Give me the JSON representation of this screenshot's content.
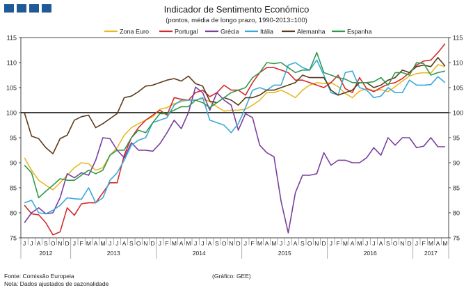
{
  "header": {
    "title": "Indicador de Sentimento Económico",
    "subtitle": "(pontos, média de longo prazo, 1990-2013=100)"
  },
  "footer": {
    "source": "Fonte: Comissão Europeia",
    "note": "Nota: Dados ajustados de sazonalidade",
    "credit": "(Gráfico: GEE)"
  },
  "chart_data": {
    "type": "line",
    "title": "Indicador de Sentimento Económico",
    "subtitle": "(pontos, média de longo prazo, 1990-2013=100)",
    "ylim": [
      75,
      115
    ],
    "yticks": [
      75,
      80,
      85,
      90,
      95,
      100,
      105,
      110,
      115
    ],
    "reference_line": 100,
    "month_labels": [
      "J",
      "J",
      "A",
      "S",
      "O",
      "N",
      "D",
      "J",
      "F",
      "M",
      "A",
      "M",
      "J",
      "J",
      "A",
      "S",
      "O",
      "N",
      "D",
      "J",
      "F",
      "M",
      "A",
      "M",
      "J",
      "J",
      "A",
      "S",
      "O",
      "N",
      "D",
      "J",
      "F",
      "M",
      "A",
      "M",
      "J",
      "J",
      "A",
      "S",
      "O",
      "N",
      "D",
      "J",
      "F",
      "M",
      "A",
      "M",
      "J",
      "J",
      "A",
      "S",
      "O",
      "N",
      "D",
      "J",
      "F",
      "M",
      "A",
      "M"
    ],
    "years": [
      {
        "label": "2012",
        "start": 0,
        "end": 6
      },
      {
        "label": "2013",
        "start": 7,
        "end": 18
      },
      {
        "label": "2014",
        "start": 19,
        "end": 30
      },
      {
        "label": "2015",
        "start": 31,
        "end": 42
      },
      {
        "label": "2016",
        "start": 43,
        "end": 54
      },
      {
        "label": "2017",
        "start": 55,
        "end": 59
      }
    ],
    "legend_position": "top",
    "series": [
      {
        "name": "Zona Euro",
        "color": "#e8b923",
        "values": [
          91,
          88.5,
          86.5,
          85.5,
          84.6,
          86,
          87.5,
          89,
          90,
          89.8,
          88.5,
          89,
          91.5,
          93,
          95.5,
          97,
          97.8,
          98.5,
          99.2,
          100.7,
          101,
          101.8,
          102.2,
          102.5,
          102.5,
          102.8,
          102.2,
          101.2,
          100.3,
          100.5,
          100.5,
          100.7,
          101.5,
          102.5,
          104,
          104,
          104.5,
          103.8,
          103,
          104.5,
          105.5,
          106,
          105.8,
          106,
          105.2,
          103.8,
          103,
          104.3,
          104.8,
          104.4,
          104.6,
          104.2,
          105.2,
          106.3,
          107.3,
          107.8,
          108,
          107.9,
          109.6,
          109.2
        ]
      },
      {
        "name": "Portugal",
        "color": "#d42a2a",
        "values": [
          81.5,
          79.8,
          79.6,
          78,
          75.6,
          76.2,
          81,
          79.5,
          81.8,
          82,
          82,
          84,
          86,
          86,
          91.5,
          95,
          97,
          98.5,
          99.5,
          100.5,
          99.5,
          103,
          102.7,
          102.5,
          104,
          104.5,
          103.2,
          104,
          105.5,
          104.5,
          104.5,
          103.5,
          106,
          108,
          109,
          109,
          108.5,
          108,
          106.5,
          106.5,
          106,
          105.5,
          105,
          106,
          107.5,
          104.8,
          104,
          107,
          104.8,
          104.2,
          105,
          105.7,
          106,
          106.8,
          108,
          109.5,
          110.3,
          110.5,
          112,
          113.8
        ]
      },
      {
        "name": "Grécia",
        "color": "#7a3e9e",
        "values": [
          78,
          80,
          81,
          79.8,
          80,
          83,
          87.8,
          87,
          88,
          87.5,
          90.5,
          95,
          94.8,
          92.5,
          91,
          94,
          92.5,
          92.5,
          92.3,
          93.8,
          96,
          98.5,
          96.8,
          100,
          105.1,
          104,
          100.5,
          104,
          102.5,
          101.5,
          96.5,
          99.8,
          99,
          93.5,
          92,
          91.2,
          82.3,
          76,
          84,
          87.5,
          87.5,
          87.8,
          92,
          89.5,
          90.5,
          90.5,
          90,
          90,
          91,
          93,
          91.5,
          95,
          93.5,
          95,
          95,
          93,
          93.3,
          95,
          93.2,
          93.2
        ]
      },
      {
        "name": "Itália",
        "color": "#3aa9d8",
        "values": [
          82,
          82.5,
          80,
          79.8,
          80.5,
          81.5,
          83,
          82.8,
          82.7,
          85,
          82,
          83,
          86.5,
          88,
          90.5,
          93.5,
          94.5,
          95,
          98,
          98.5,
          99,
          101.5,
          102.5,
          102.5,
          102.5,
          103,
          98.5,
          98,
          97.5,
          96,
          97.8,
          101,
          104.5,
          105,
          104.5,
          105.5,
          105.5,
          109.5,
          110,
          109,
          108.5,
          110.5,
          107.5,
          104,
          103.5,
          108,
          108.3,
          105,
          104.5,
          103,
          103.3,
          105,
          104,
          104,
          106.5,
          105.5,
          105.5,
          105.6,
          107.2,
          106
        ]
      },
      {
        "name": "Alemanha",
        "color": "#5a3a1a",
        "values": [
          100,
          95.3,
          94.8,
          93,
          91.8,
          94.8,
          95.5,
          98.5,
          99.2,
          99.5,
          97,
          97.8,
          98.8,
          99.8,
          103,
          103.3,
          104.2,
          105.3,
          105.5,
          106,
          106.5,
          106.8,
          106.3,
          107.3,
          105.8,
          105.3,
          102.3,
          102,
          103,
          102.5,
          101.5,
          103,
          103,
          103.5,
          104.5,
          104.5,
          105,
          105.5,
          106,
          107.5,
          107,
          107,
          107,
          104.5,
          103.5,
          104,
          104.5,
          106,
          106,
          105,
          105.5,
          106.5,
          107,
          108.5,
          108,
          109.2,
          109.5,
          109.2,
          111,
          109.3
        ]
      },
      {
        "name": "Espanha",
        "color": "#2f9a4e",
        "values": [
          89.5,
          88,
          83,
          84.3,
          85.5,
          86.8,
          86.5,
          86.5,
          87.5,
          88.5,
          87.8,
          88.5,
          91.5,
          92.5,
          92.5,
          95,
          96.5,
          96,
          98,
          99.8,
          99.8,
          100.5,
          101.2,
          101.2,
          102.5,
          102,
          101,
          102,
          103,
          104,
          104.5,
          105,
          107,
          108,
          110,
          109.8,
          110,
          109,
          108,
          108.5,
          108.5,
          112,
          108,
          107.5,
          107,
          106.7,
          106,
          106,
          106,
          106.2,
          107,
          105.5,
          108,
          108,
          107.5,
          110,
          109.8,
          107.5,
          108,
          108.3
        ]
      }
    ]
  }
}
